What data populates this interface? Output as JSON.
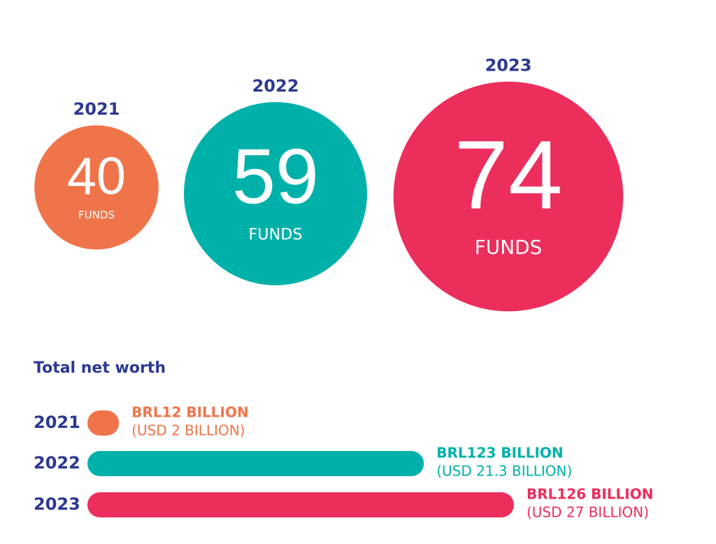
{
  "chart_data": [
    {
      "type": "bubble",
      "categories": [
        "2021",
        "2022",
        "2023"
      ],
      "values": [
        40,
        59,
        74
      ],
      "unit_label": "FUNDS",
      "colors": [
        "#f0744a",
        "#00b1aa",
        "#ec2e5c"
      ]
    },
    {
      "type": "bar",
      "title": "Total net worth",
      "categories": [
        "2021",
        "2022",
        "2023"
      ],
      "values": [
        2,
        21.3,
        27
      ],
      "value_labels": [
        "(USD 2 BILLION)",
        "(USD 21.3 BILLION)",
        "(USD 27 BILLION)"
      ],
      "secondary_labels": [
        "BRL12 BILLION",
        "BRL123 BILLION",
        "BRL126 BILLION"
      ],
      "colors": [
        "#f0744a",
        "#00b1aa",
        "#ec2e5c"
      ]
    }
  ]
}
